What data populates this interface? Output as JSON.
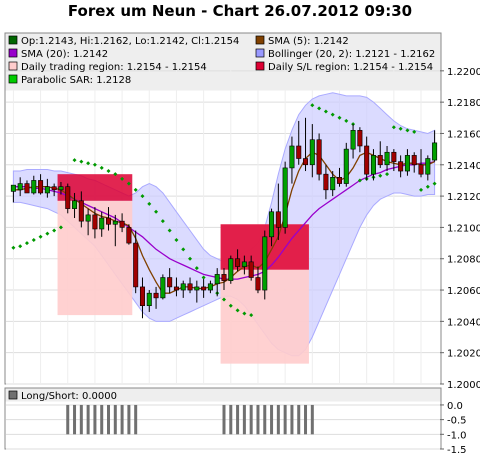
{
  "title": "Forex um Neun - Chart 26.07.2012 09:30",
  "colors": {
    "up": "#00a000",
    "down": "#a00000",
    "bollinger_fill": "#ccccff",
    "sma5": "#804000",
    "sma20": "#9900cc",
    "sar": "#009900",
    "trading_region": "#ffcccc",
    "sl_region": "#dd0033",
    "plot_bg": "#ffffff",
    "legend_bg": "#eeeeee",
    "ls_bar": "#707070"
  },
  "chart_data": [
    {
      "type": "candlestick",
      "y_ticks": [
        "1.2200",
        "1.2180",
        "1.2160",
        "1.2140",
        "1.2120",
        "1.2100",
        "1.2080",
        "1.2060",
        "1.2040",
        "1.2020",
        "1.2000"
      ],
      "ylim": [
        1.2,
        1.2205
      ],
      "grid": true,
      "legend": [
        {
          "label": "Op:1.2143, Hi:1.2162, Lo:1.2142, Cl:1.2154",
          "color": "#006600"
        },
        {
          "label": "SMA (5): 1.2142",
          "color": "#804000"
        },
        {
          "label": "SMA (20): 1.2142",
          "color": "#9900cc"
        },
        {
          "label": "Bollinger (20, 2): 1.2121 - 1.2162",
          "color": "#9999ff"
        },
        {
          "label": "Daily trading region: 1.2154 - 1.2154",
          "color": "#ffcccc"
        },
        {
          "label": "Daily S/L region: 1.2154 - 1.2154",
          "color": "#dd0033"
        },
        {
          "label": "Parabolic SAR: 1.2128",
          "color": "#00cc00"
        }
      ],
      "candles": [
        {
          "o": 1.2123,
          "h": 1.2126,
          "l": 1.2116,
          "c": 1.2127
        },
        {
          "o": 1.2124,
          "h": 1.2132,
          "l": 1.212,
          "c": 1.2128
        },
        {
          "o": 1.2128,
          "h": 1.213,
          "l": 1.2123,
          "c": 1.2122
        },
        {
          "o": 1.2122,
          "h": 1.2133,
          "l": 1.2121,
          "c": 1.213
        },
        {
          "o": 1.213,
          "h": 1.2134,
          "l": 1.2121,
          "c": 1.2122
        },
        {
          "o": 1.2122,
          "h": 1.2131,
          "l": 1.2119,
          "c": 1.2126
        },
        {
          "o": 1.2126,
          "h": 1.2128,
          "l": 1.212,
          "c": 1.2124
        },
        {
          "o": 1.2124,
          "h": 1.2129,
          "l": 1.2121,
          "c": 1.2126
        },
        {
          "o": 1.2126,
          "h": 1.2128,
          "l": 1.2109,
          "c": 1.2112
        },
        {
          "o": 1.2112,
          "h": 1.2122,
          "l": 1.2106,
          "c": 1.2117
        },
        {
          "o": 1.2117,
          "h": 1.2123,
          "l": 1.21,
          "c": 1.2104
        },
        {
          "o": 1.2104,
          "h": 1.2112,
          "l": 1.2095,
          "c": 1.2108
        },
        {
          "o": 1.2108,
          "h": 1.2113,
          "l": 1.2093,
          "c": 1.2099
        },
        {
          "o": 1.2099,
          "h": 1.211,
          "l": 1.2094,
          "c": 1.2106
        },
        {
          "o": 1.2106,
          "h": 1.2113,
          "l": 1.2098,
          "c": 1.2102
        },
        {
          "o": 1.2102,
          "h": 1.2108,
          "l": 1.2088,
          "c": 1.2104
        },
        {
          "o": 1.2104,
          "h": 1.2109,
          "l": 1.2097,
          "c": 1.21
        },
        {
          "o": 1.21,
          "h": 1.2102,
          "l": 1.2089,
          "c": 1.209
        },
        {
          "o": 1.209,
          "h": 1.2098,
          "l": 1.2058,
          "c": 1.2062
        },
        {
          "o": 1.2062,
          "h": 1.2068,
          "l": 1.2042,
          "c": 1.205
        },
        {
          "o": 1.205,
          "h": 1.206,
          "l": 1.2046,
          "c": 1.2058
        },
        {
          "o": 1.2058,
          "h": 1.2062,
          "l": 1.2048,
          "c": 1.2055
        },
        {
          "o": 1.2055,
          "h": 1.207,
          "l": 1.2054,
          "c": 1.2068
        },
        {
          "o": 1.2068,
          "h": 1.2074,
          "l": 1.2058,
          "c": 1.2062
        },
        {
          "o": 1.2062,
          "h": 1.2068,
          "l": 1.2056,
          "c": 1.206
        },
        {
          "o": 1.206,
          "h": 1.2066,
          "l": 1.2055,
          "c": 1.2064
        },
        {
          "o": 1.2064,
          "h": 1.2068,
          "l": 1.2058,
          "c": 1.206
        },
        {
          "o": 1.206,
          "h": 1.2066,
          "l": 1.2052,
          "c": 1.2062
        },
        {
          "o": 1.2062,
          "h": 1.2067,
          "l": 1.2055,
          "c": 1.206
        },
        {
          "o": 1.206,
          "h": 1.2066,
          "l": 1.2058,
          "c": 1.2064
        },
        {
          "o": 1.2064,
          "h": 1.2074,
          "l": 1.2056,
          "c": 1.207
        },
        {
          "o": 1.207,
          "h": 1.2074,
          "l": 1.206,
          "c": 1.2066
        },
        {
          "o": 1.2066,
          "h": 1.2082,
          "l": 1.2064,
          "c": 1.208
        },
        {
          "o": 1.208,
          "h": 1.2086,
          "l": 1.2072,
          "c": 1.2075
        },
        {
          "o": 1.2075,
          "h": 1.2082,
          "l": 1.207,
          "c": 1.2078
        },
        {
          "o": 1.2078,
          "h": 1.2082,
          "l": 1.2066,
          "c": 1.2068
        },
        {
          "o": 1.2068,
          "h": 1.2075,
          "l": 1.2058,
          "c": 1.206
        },
        {
          "o": 1.206,
          "h": 1.2098,
          "l": 1.2054,
          "c": 1.2094
        },
        {
          "o": 1.2094,
          "h": 1.2112,
          "l": 1.2088,
          "c": 1.211
        },
        {
          "o": 1.211,
          "h": 1.2128,
          "l": 1.2092,
          "c": 1.21
        },
        {
          "o": 1.21,
          "h": 1.2142,
          "l": 1.2096,
          "c": 1.2138
        },
        {
          "o": 1.2138,
          "h": 1.2158,
          "l": 1.2128,
          "c": 1.2152
        },
        {
          "o": 1.2152,
          "h": 1.2168,
          "l": 1.214,
          "c": 1.2144
        },
        {
          "o": 1.2144,
          "h": 1.217,
          "l": 1.2136,
          "c": 1.214
        },
        {
          "o": 1.214,
          "h": 1.2166,
          "l": 1.2132,
          "c": 1.2156
        },
        {
          "o": 1.2156,
          "h": 1.216,
          "l": 1.213,
          "c": 1.2134
        },
        {
          "o": 1.2134,
          "h": 1.214,
          "l": 1.2118,
          "c": 1.2124
        },
        {
          "o": 1.2124,
          "h": 1.2136,
          "l": 1.212,
          "c": 1.2132
        },
        {
          "o": 1.2132,
          "h": 1.2138,
          "l": 1.2126,
          "c": 1.2128
        },
        {
          "o": 1.2128,
          "h": 1.2154,
          "l": 1.2126,
          "c": 1.215
        },
        {
          "o": 1.215,
          "h": 1.2166,
          "l": 1.2144,
          "c": 1.2162
        },
        {
          "o": 1.2162,
          "h": 1.2164,
          "l": 1.2148,
          "c": 1.2152
        },
        {
          "o": 1.2152,
          "h": 1.2158,
          "l": 1.213,
          "c": 1.2134
        },
        {
          "o": 1.2134,
          "h": 1.215,
          "l": 1.213,
          "c": 1.2146
        },
        {
          "o": 1.2146,
          "h": 1.2155,
          "l": 1.2138,
          "c": 1.214
        },
        {
          "o": 1.214,
          "h": 1.2152,
          "l": 1.2136,
          "c": 1.2148
        },
        {
          "o": 1.2148,
          "h": 1.215,
          "l": 1.2136,
          "c": 1.2142
        },
        {
          "o": 1.2142,
          "h": 1.2146,
          "l": 1.2132,
          "c": 1.2136
        },
        {
          "o": 1.2136,
          "h": 1.215,
          "l": 1.2133,
          "c": 1.2146
        },
        {
          "o": 1.2146,
          "h": 1.2148,
          "l": 1.2135,
          "c": 1.214
        },
        {
          "o": 1.214,
          "h": 1.215,
          "l": 1.2132,
          "c": 1.2134
        },
        {
          "o": 1.2134,
          "h": 1.2146,
          "l": 1.213,
          "c": 1.2144
        },
        {
          "o": 1.2143,
          "h": 1.2162,
          "l": 1.2142,
          "c": 1.2154
        }
      ],
      "sma5": [
        1.2124,
        1.2124,
        1.2125,
        1.2126,
        1.2126,
        1.2126,
        1.2125,
        1.2124,
        1.2121,
        1.2118,
        1.2115,
        1.2112,
        1.2109,
        1.2107,
        1.2106,
        1.2104,
        1.2103,
        1.2101,
        1.2093,
        1.2082,
        1.2073,
        1.2065,
        1.2058,
        1.2058,
        1.206,
        1.2062,
        1.2062,
        1.2061,
        1.2061,
        1.2062,
        1.2064,
        1.2065,
        1.2068,
        1.2072,
        1.2075,
        1.2076,
        1.2074,
        1.2078,
        1.2086,
        1.2094,
        1.2108,
        1.2124,
        1.2136,
        1.2144,
        1.2148,
        1.2146,
        1.214,
        1.2134,
        1.213,
        1.2132,
        1.2138,
        1.2146,
        1.2148,
        1.2146,
        1.2144,
        1.2142,
        1.2141,
        1.214,
        1.2141,
        1.2141,
        1.214,
        1.214,
        1.2142
      ],
      "sma20": [
        1.2126,
        1.2126,
        1.2126,
        1.2125,
        1.2125,
        1.2124,
        1.2123,
        1.2122,
        1.212,
        1.2118,
        1.2116,
        1.2114,
        1.2112,
        1.211,
        1.2108,
        1.2106,
        1.2103,
        1.21,
        1.2097,
        1.2094,
        1.209,
        1.2086,
        1.2083,
        1.208,
        1.2078,
        1.2076,
        1.2074,
        1.2072,
        1.207,
        1.2069,
        1.2068,
        1.2067,
        1.2067,
        1.2067,
        1.2068,
        1.2069,
        1.207,
        1.2072,
        1.2076,
        1.2081,
        1.2087,
        1.2093,
        1.2098,
        1.2103,
        1.2108,
        1.2112,
        1.2115,
        1.2118,
        1.2121,
        1.2124,
        1.2127,
        1.213,
        1.2132,
        1.2134,
        1.2135,
        1.2137,
        1.2138,
        1.2139,
        1.214,
        1.214,
        1.2141,
        1.2141,
        1.2142
      ],
      "boll_upper": [
        1.2136,
        1.2136,
        1.2137,
        1.2137,
        1.2137,
        1.2137,
        1.2136,
        1.2136,
        1.2135,
        1.2134,
        1.2133,
        1.2131,
        1.213,
        1.2128,
        1.2126,
        1.2124,
        1.2122,
        1.212,
        1.2122,
        1.2126,
        1.2128,
        1.2126,
        1.2122,
        1.2116,
        1.211,
        1.2104,
        1.2098,
        1.2092,
        1.2086,
        1.2082,
        1.208,
        1.2078,
        1.208,
        1.2082,
        1.2084,
        1.2086,
        1.209,
        1.21,
        1.2116,
        1.2134,
        1.215,
        1.2162,
        1.2172,
        1.2178,
        1.2182,
        1.2184,
        1.2185,
        1.2186,
        1.2185,
        1.2184,
        1.2184,
        1.2184,
        1.2183,
        1.218,
        1.2176,
        1.2172,
        1.2168,
        1.2165,
        1.2163,
        1.2162,
        1.2161,
        1.216,
        1.2162
      ],
      "boll_lower": [
        1.2116,
        1.2116,
        1.2115,
        1.2114,
        1.2113,
        1.2112,
        1.211,
        1.2108,
        1.2104,
        1.21,
        1.2096,
        1.2092,
        1.2088,
        1.2082,
        1.2076,
        1.207,
        1.2064,
        1.2058,
        1.2052,
        1.2046,
        1.2042,
        1.204,
        1.204,
        1.204,
        1.2042,
        1.2044,
        1.2046,
        1.2048,
        1.205,
        1.2052,
        1.2054,
        1.2056,
        1.2056,
        1.2054,
        1.205,
        1.2044,
        1.2038,
        1.2032,
        1.2026,
        1.2022,
        1.202,
        1.2018,
        1.2018,
        1.2022,
        1.203,
        1.204,
        1.205,
        1.206,
        1.207,
        1.208,
        1.209,
        1.21,
        1.2108,
        1.2114,
        1.2118,
        1.212,
        1.2122,
        1.2122,
        1.2121,
        1.212,
        1.212,
        1.2121,
        1.2121
      ],
      "sar": [
        null,
        null,
        null,
        null,
        null,
        null,
        null,
        null,
        null,
        null,
        null,
        null,
        null,
        null,
        null,
        null,
        null,
        null,
        null,
        null,
        null,
        null,
        null,
        null,
        null,
        null,
        null,
        null,
        null,
        null,
        null,
        null,
        null,
        null,
        null,
        null,
        null,
        null,
        null,
        null,
        null,
        null,
        null,
        null,
        null,
        null,
        null,
        null,
        null,
        null,
        null,
        null,
        null,
        null,
        null,
        null,
        null,
        null,
        null,
        null,
        null,
        null,
        null
      ],
      "sar_points": [
        {
          "i": 0,
          "v": 1.2087
        },
        {
          "i": 1,
          "v": 1.2088
        },
        {
          "i": 2,
          "v": 1.209
        },
        {
          "i": 3,
          "v": 1.2092
        },
        {
          "i": 4,
          "v": 1.2094
        },
        {
          "i": 5,
          "v": 1.2096
        },
        {
          "i": 6,
          "v": 1.2098
        },
        {
          "i": 7,
          "v": 1.21
        },
        {
          "i": 9,
          "v": 1.2143
        },
        {
          "i": 10,
          "v": 1.2142
        },
        {
          "i": 11,
          "v": 1.2141
        },
        {
          "i": 12,
          "v": 1.214
        },
        {
          "i": 13,
          "v": 1.2138
        },
        {
          "i": 14,
          "v": 1.2136
        },
        {
          "i": 15,
          "v": 1.2134
        },
        {
          "i": 16,
          "v": 1.2131
        },
        {
          "i": 17,
          "v": 1.2128
        },
        {
          "i": 18,
          "v": 1.2124
        },
        {
          "i": 19,
          "v": 1.212
        },
        {
          "i": 20,
          "v": 1.2115
        },
        {
          "i": 21,
          "v": 1.211
        },
        {
          "i": 22,
          "v": 1.2104
        },
        {
          "i": 23,
          "v": 1.2098
        },
        {
          "i": 24,
          "v": 1.2092
        },
        {
          "i": 25,
          "v": 1.2086
        },
        {
          "i": 26,
          "v": 1.208
        },
        {
          "i": 27,
          "v": 1.2074
        },
        {
          "i": 28,
          "v": 1.2068
        },
        {
          "i": 29,
          "v": 1.2063
        },
        {
          "i": 30,
          "v": 1.2058
        },
        {
          "i": 31,
          "v": 1.2054
        },
        {
          "i": 32,
          "v": 1.205
        },
        {
          "i": 33,
          "v": 1.2047
        },
        {
          "i": 34,
          "v": 1.2045
        },
        {
          "i": 35,
          "v": 1.2044
        },
        {
          "i": 44,
          "v": 1.2178
        },
        {
          "i": 45,
          "v": 1.2176
        },
        {
          "i": 46,
          "v": 1.2174
        },
        {
          "i": 47,
          "v": 1.2172
        },
        {
          "i": 48,
          "v": 1.217
        },
        {
          "i": 49,
          "v": 1.2168
        },
        {
          "i": 50,
          "v": 1.2166
        },
        {
          "i": 51,
          "v": 1.213
        },
        {
          "i": 52,
          "v": 1.2131
        },
        {
          "i": 53,
          "v": 1.2132
        },
        {
          "i": 54,
          "v": 1.2133
        },
        {
          "i": 55,
          "v": 1.2134
        },
        {
          "i": 56,
          "v": 1.2164
        },
        {
          "i": 57,
          "v": 1.2163
        },
        {
          "i": 58,
          "v": 1.2162
        },
        {
          "i": 59,
          "v": 1.2161
        },
        {
          "i": 60,
          "v": 1.2124
        },
        {
          "i": 61,
          "v": 1.2126
        },
        {
          "i": 62,
          "v": 1.2128
        }
      ],
      "trading_regions": [
        {
          "from": 7,
          "to": 18,
          "lo": 1.2044,
          "hi": 1.2117
        },
        {
          "from": 31,
          "to": 44,
          "lo": 1.2013,
          "hi": 1.2102
        }
      ],
      "sl_regions": [
        {
          "from": 7,
          "to": 18,
          "lo": 1.2117,
          "hi": 1.2134
        },
        {
          "from": 31,
          "to": 44,
          "lo": 1.2073,
          "hi": 1.2102
        }
      ]
    },
    {
      "type": "bar",
      "legend": [
        {
          "label": "Long/Short: 0.0000",
          "color": "#707070"
        }
      ],
      "y_ticks": [
        "0.0",
        "-0.5",
        "-1.0",
        "-1.5"
      ],
      "ylim": [
        -1.5,
        0.1
      ],
      "values_groups": [
        {
          "from": 8,
          "to": 18,
          "value": -1.0
        },
        {
          "from": 31,
          "to": 44,
          "value": -1.0
        }
      ]
    }
  ]
}
